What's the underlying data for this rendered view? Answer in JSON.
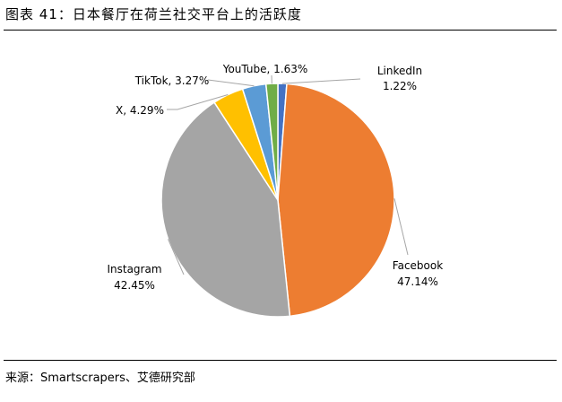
{
  "figure": {
    "title": "图表 41：日本餐厅在荷兰社交平台上的活跃度",
    "source": "来源：Smartscrapers、艾德研究部"
  },
  "chart_data": {
    "type": "pie",
    "title": "",
    "start_angle_deg": 0,
    "direction": "clockwise",
    "slices": [
      {
        "name": "LinkedIn",
        "value": 1.22,
        "label": "1.22%",
        "color": "#4472C4"
      },
      {
        "name": "Facebook",
        "value": 47.14,
        "label": "47.14%",
        "color": "#ED7D31"
      },
      {
        "name": "Instagram",
        "value": 42.45,
        "label": "42.45%",
        "color": "#A5A5A5"
      },
      {
        "name": "X",
        "value": 4.29,
        "label": "4.29%",
        "color": "#FFC000"
      },
      {
        "name": "TikTok",
        "value": 3.27,
        "label": "3.27%",
        "color": "#5B9BD5"
      },
      {
        "name": "YouTube",
        "value": 1.63,
        "label": "1.63%",
        "color": "#70AD47"
      }
    ]
  }
}
